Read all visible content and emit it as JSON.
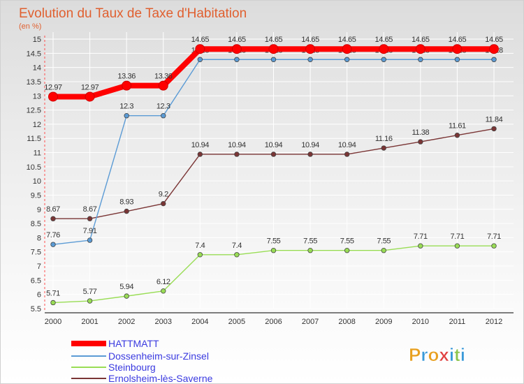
{
  "chart_data": {
    "type": "line",
    "title": "Evolution du Taux de Taxe d'Habitation",
    "subtitle": "(en %)",
    "x": [
      2000,
      2001,
      2002,
      2003,
      2004,
      2005,
      2006,
      2007,
      2008,
      2009,
      2010,
      2011,
      2012
    ],
    "ylim": [
      5.5,
      15
    ],
    "yticks": [
      5.5,
      6,
      6.5,
      7,
      7.5,
      8,
      8.5,
      9,
      9.5,
      10,
      10.5,
      11,
      11.5,
      12,
      12.5,
      13,
      13.5,
      14,
      14.5,
      15
    ],
    "grid": true,
    "legend_position": "bottom-left",
    "series": [
      {
        "name": "HATTMATT",
        "color": "#ff0000",
        "values": [
          12.97,
          12.97,
          13.36,
          13.36,
          14.65,
          14.65,
          14.65,
          14.65,
          14.65,
          14.65,
          14.65,
          14.65,
          14.65
        ],
        "labels": [
          "12.97",
          "12.97",
          "13.36",
          "13.36",
          "14.65",
          "14.65",
          "14.65",
          "14.65",
          "14.65",
          "14.65",
          "14.65",
          "14.65",
          "14.65"
        ]
      },
      {
        "name": "Dossenheim-sur-Zinsel",
        "color": "#5b9bd5",
        "values": [
          7.76,
          7.91,
          12.3,
          12.3,
          14.28,
          14.28,
          14.28,
          14.28,
          14.28,
          14.28,
          14.28,
          14.28,
          14.28
        ],
        "labels": [
          "7.76",
          "7.91",
          "12.3",
          "12.3",
          "14.28",
          "14.28",
          "14.28",
          "14.28",
          "14.28",
          "14.28",
          "14.28",
          "14.28",
          "14.28"
        ]
      },
      {
        "name": "Steinbourg",
        "color": "#99dd55",
        "values": [
          5.71,
          5.77,
          5.94,
          6.12,
          7.4,
          7.4,
          7.55,
          7.55,
          7.55,
          7.55,
          7.71,
          7.71,
          7.71
        ],
        "labels": [
          "5.71",
          "5.77",
          "5.94",
          "6.12",
          "7.4",
          "7.4",
          "7.55",
          "7.55",
          "7.55",
          "7.55",
          "7.71",
          "7.71",
          "7.71"
        ]
      },
      {
        "name": "Ernolsheim-lès-Saverne",
        "color": "#7a3535",
        "values": [
          8.67,
          8.67,
          8.93,
          9.2,
          10.94,
          10.94,
          10.94,
          10.94,
          10.94,
          11.16,
          11.38,
          11.61,
          11.84
        ],
        "labels": [
          "8.67",
          "8.67",
          "8.93",
          "9.2",
          "10.94",
          "10.94",
          "10.94",
          "10.94",
          "10.94",
          "11.16",
          "11.38",
          "11.61",
          "11.84"
        ]
      }
    ]
  },
  "legend_text_color": "#3a3ae0",
  "logo": {
    "letters": [
      "P",
      "r",
      "o",
      "x",
      "i",
      "t",
      "i"
    ],
    "colors": [
      "#e8a020",
      "#3a9ad9",
      "#e8a020",
      "#e04040",
      "#3a9ad9",
      "#8bc34a",
      "#3a9ad9"
    ]
  }
}
